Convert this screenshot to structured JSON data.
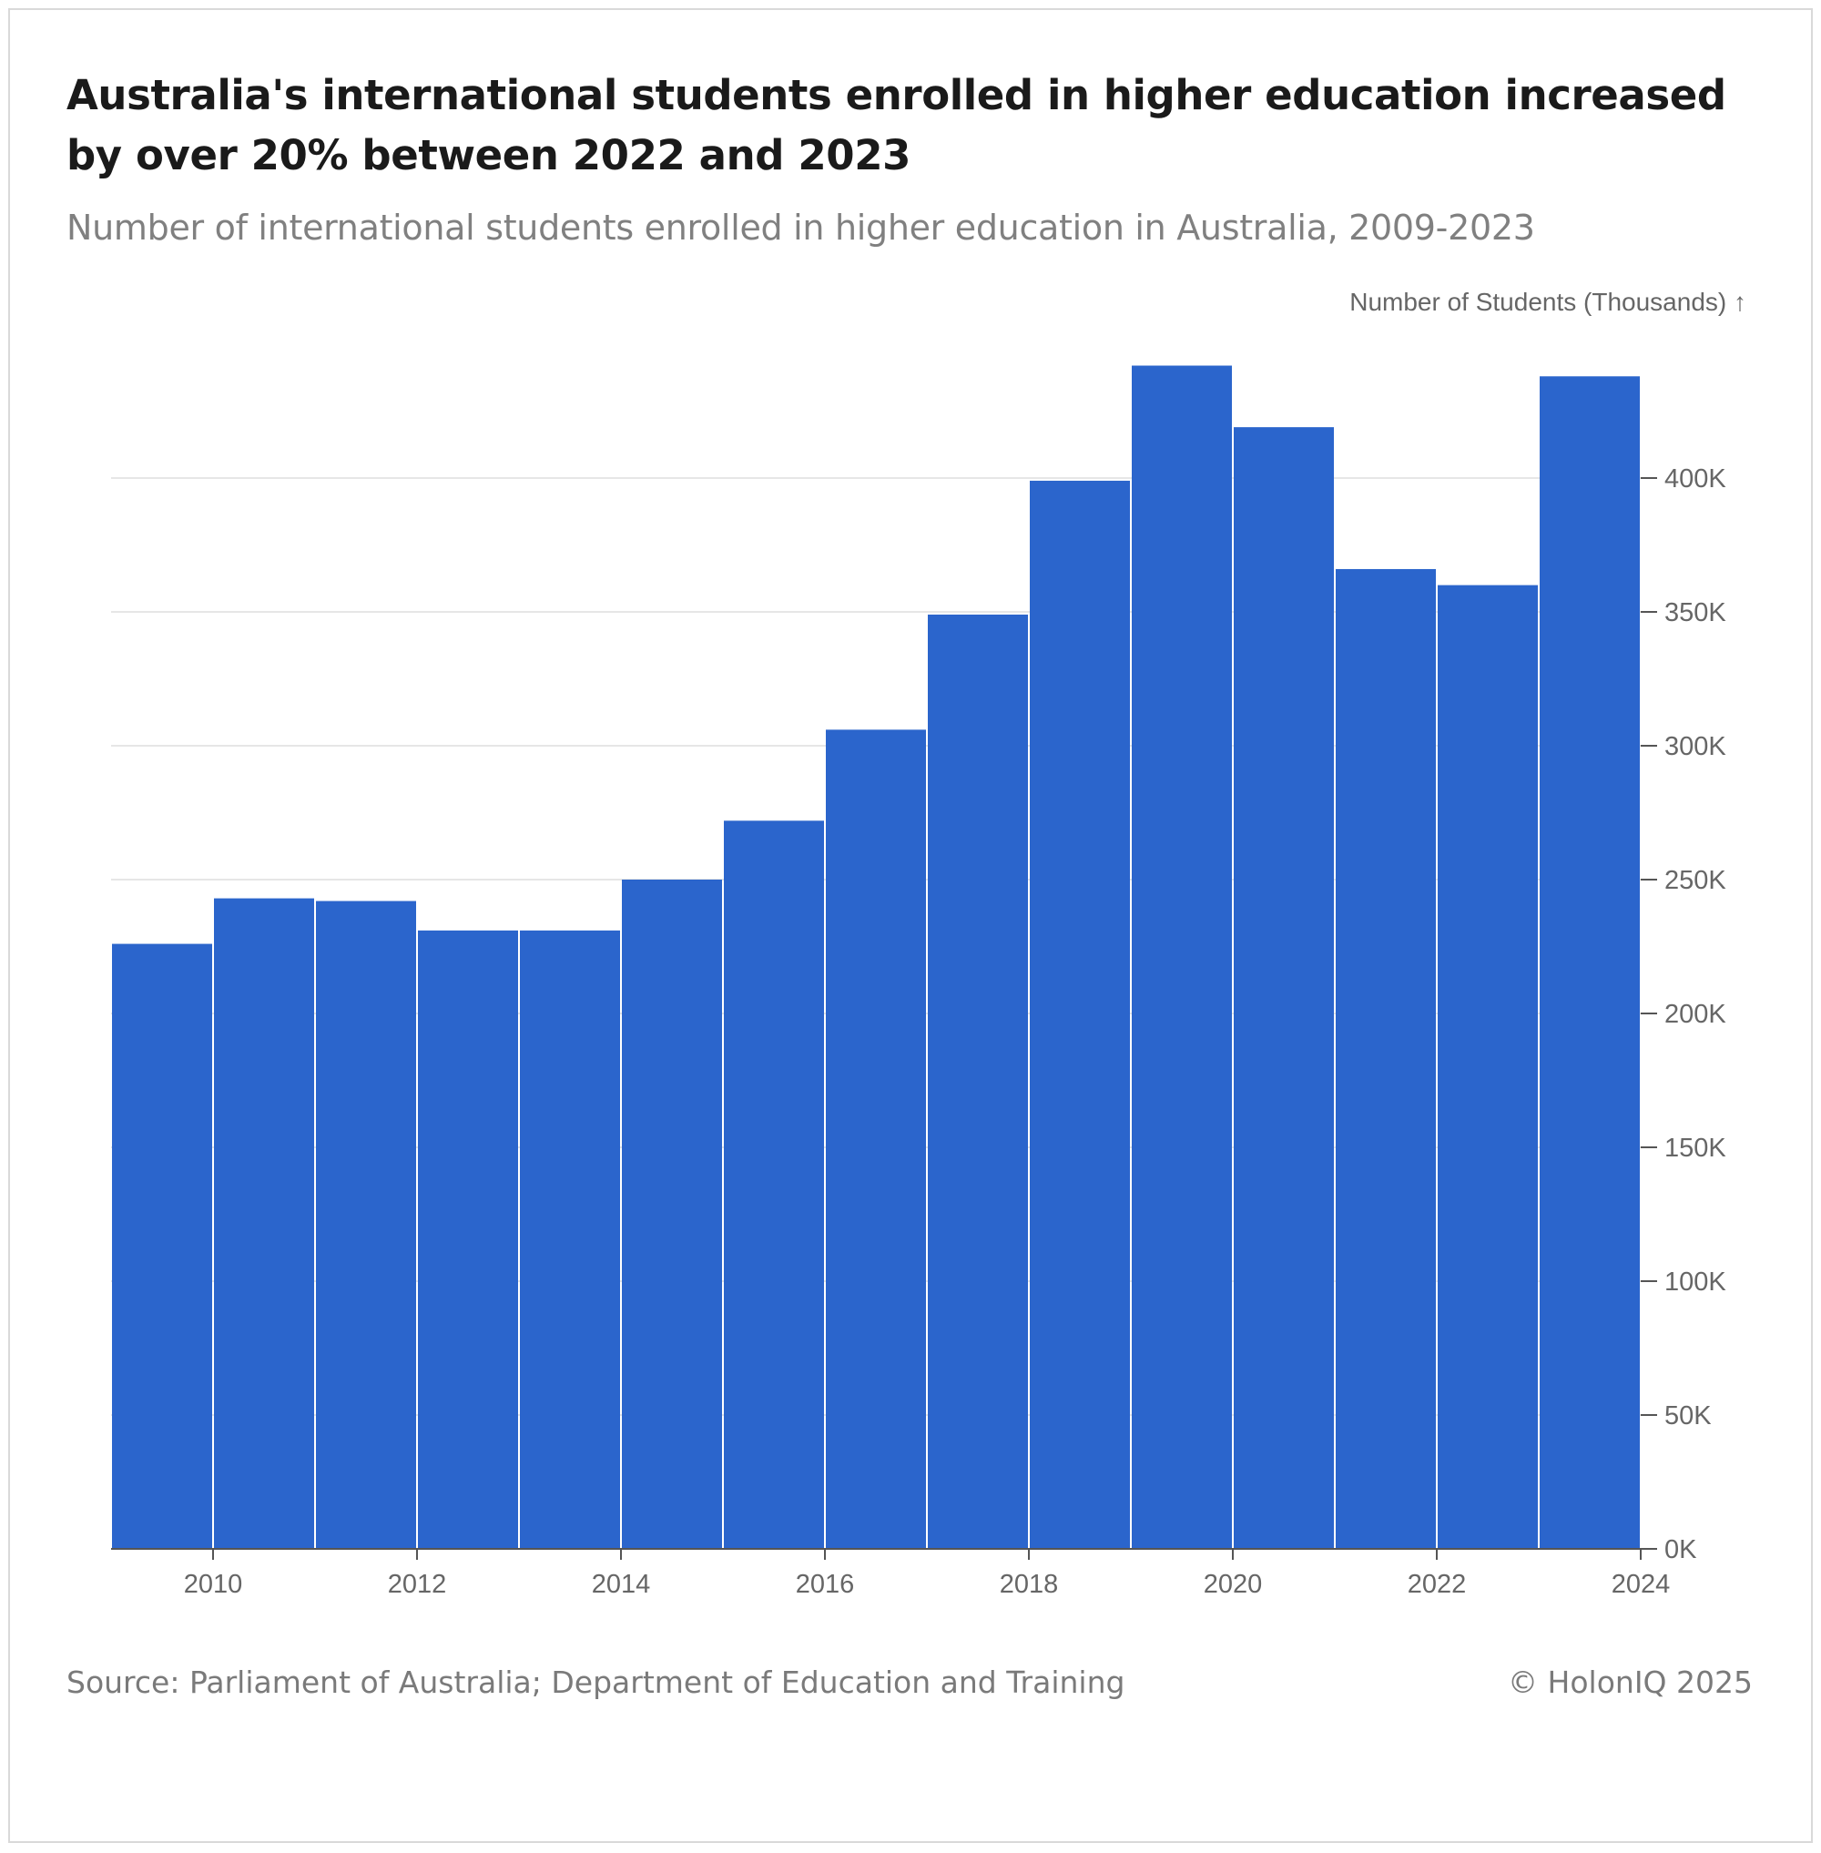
{
  "header": {
    "title": "Australia's international students enrolled in higher education increased by over 20% between 2022 and 2023",
    "subtitle": "Number of international students enrolled in higher education in Australia, 2009-2023"
  },
  "footer": {
    "source": "Source: Parliament of Australia; Department of Education and Training",
    "copyright": "© HolonIQ 2025"
  },
  "colors": {
    "bar": "#2b65cc",
    "grid": "#e6e6e6",
    "axis": "#555555",
    "tick_text": "#666666"
  },
  "chart_data": {
    "type": "bar",
    "title": "Australia's international students enrolled in higher education increased by over 20% between 2022 and 2023",
    "subtitle": "Number of international students enrolled in higher education in Australia, 2009-2023",
    "ylabel": "Number of Students (Thousands) ↑",
    "xlabel": "",
    "y_axis_position": "right",
    "grid": true,
    "bins": [
      {
        "x0": 2009,
        "x1": 2010,
        "value": 226
      },
      {
        "x0": 2010,
        "x1": 2011,
        "value": 243
      },
      {
        "x0": 2011,
        "x1": 2012,
        "value": 242
      },
      {
        "x0": 2012,
        "x1": 2013,
        "value": 231
      },
      {
        "x0": 2013,
        "x1": 2014,
        "value": 231
      },
      {
        "x0": 2014,
        "x1": 2015,
        "value": 250
      },
      {
        "x0": 2015,
        "x1": 2016,
        "value": 272
      },
      {
        "x0": 2016,
        "x1": 2017,
        "value": 306
      },
      {
        "x0": 2017,
        "x1": 2018,
        "value": 349
      },
      {
        "x0": 2018,
        "x1": 2019,
        "value": 399
      },
      {
        "x0": 2019,
        "x1": 2020,
        "value": 442
      },
      {
        "x0": 2020,
        "x1": 2021,
        "value": 419
      },
      {
        "x0": 2021,
        "x1": 2022,
        "value": 366
      },
      {
        "x0": 2022,
        "x1": 2023,
        "value": 360
      },
      {
        "x0": 2023,
        "x1": 2024,
        "value": 438
      }
    ],
    "xlim": [
      2009,
      2024
    ],
    "ylim": [
      0,
      450
    ],
    "x_ticks": [
      2010,
      2012,
      2014,
      2016,
      2018,
      2020,
      2022,
      2024
    ],
    "x_tick_labels": [
      "2010",
      "2012",
      "2014",
      "2016",
      "2018",
      "2020",
      "2022",
      "2024"
    ],
    "y_ticks": [
      0,
      50,
      100,
      150,
      200,
      250,
      300,
      350,
      400
    ],
    "y_tick_labels": [
      "0K",
      "50K",
      "100K",
      "150K",
      "200K",
      "250K",
      "300K",
      "350K",
      "400K"
    ]
  }
}
